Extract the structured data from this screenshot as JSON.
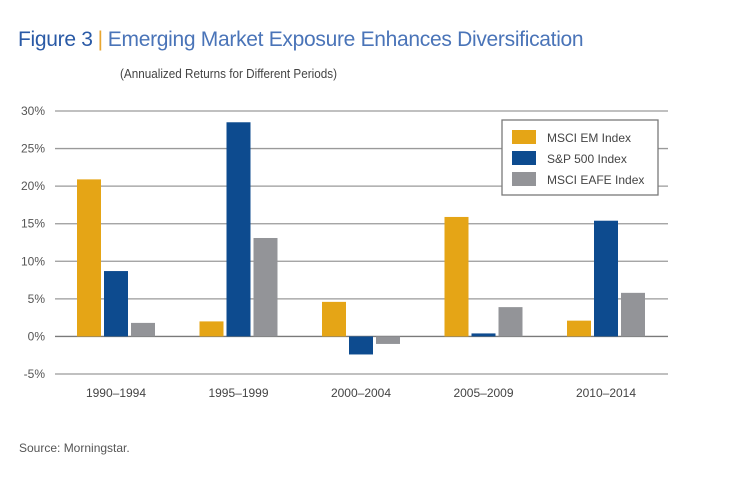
{
  "header": {
    "figure_label": "Figure 3",
    "separator": "|",
    "title": "Emerging Market Exposure Enhances Diversification",
    "subtitle": "(Annualized Returns for Different Periods)"
  },
  "footer": {
    "source": "Source: Morningstar."
  },
  "chart_data": {
    "type": "bar",
    "title": "Emerging Market Exposure Enhances Diversification",
    "subtitle": "(Annualized Returns for Different Periods)",
    "xlabel": "",
    "ylabel": "",
    "categories": [
      "1990–1994",
      "1995–1999",
      "2000–2004",
      "2005–2009",
      "2010–2014"
    ],
    "series": [
      {
        "name": "MSCI EM Index",
        "color": "#e5a516",
        "values": [
          20.9,
          2.0,
          4.6,
          15.9,
          2.1
        ]
      },
      {
        "name": "S&P 500 Index",
        "color": "#0d4b8f",
        "values": [
          8.7,
          28.5,
          -2.4,
          0.4,
          15.4
        ]
      },
      {
        "name": "MSCI EAFE Index",
        "color": "#939498",
        "values": [
          1.8,
          13.1,
          -1.0,
          3.9,
          5.8
        ]
      }
    ],
    "ylim": [
      -5,
      30
    ],
    "yticks": [
      30,
      25,
      20,
      15,
      10,
      5,
      0,
      -5
    ],
    "ytick_labels": [
      "30%",
      "25%",
      "20%",
      "15%",
      "10%",
      "5%",
      "0%",
      "-5%"
    ],
    "grid": true,
    "legend_position": "top-right",
    "source": "Source: Morningstar."
  }
}
